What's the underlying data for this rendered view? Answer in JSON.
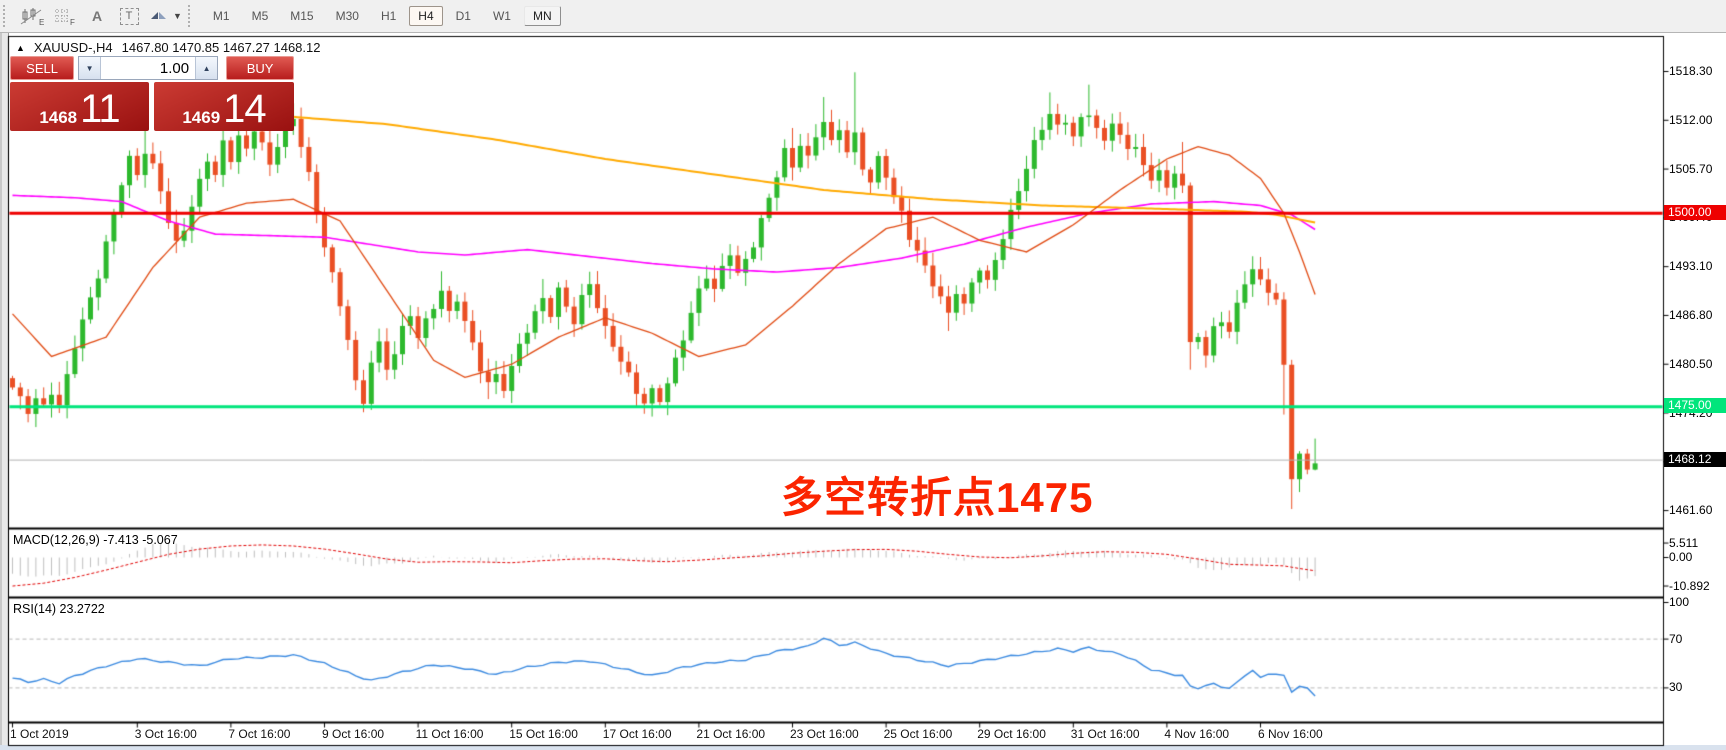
{
  "toolbar": {
    "tools": [
      "indicators-icon",
      "grid-icon",
      "text-label-icon",
      "text-box-icon",
      "cycle-arrows-icon"
    ],
    "text_label_glyph": "A",
    "text_box_glyph": "T",
    "timeframes": [
      "M1",
      "M5",
      "M15",
      "M30",
      "H1",
      "H4",
      "D1",
      "W1",
      "MN"
    ],
    "active_timeframe": "H4",
    "raised_timeframe": "MN"
  },
  "header": {
    "symbol": "XAUUSD-,H4",
    "quotes": "1467.80 1470.85 1467.27 1468.12",
    "open": "1467.80",
    "high": "1470.85",
    "low": "1467.27",
    "close": "1468.12"
  },
  "trade_panel": {
    "sell_label": "SELL",
    "buy_label": "BUY",
    "volume": "1.00",
    "bid_main": "1468",
    "bid_pts": "11",
    "ask_main": "1469",
    "ask_pts": "14"
  },
  "annotation": {
    "text": "多空转折点1475",
    "color": "#fb2400"
  },
  "levels": {
    "resistance": {
      "price": 1500.0,
      "label": "1500.00",
      "color": "#ee0000"
    },
    "support": {
      "price": 1475.0,
      "label": "1475.00",
      "color": "#00e57c"
    },
    "current": {
      "price": 1468.12,
      "label": "1468.12",
      "color": "#000000"
    }
  },
  "macd_panel": {
    "label": "MACD(12,26,9) -7.413 -5.067",
    "axis": [
      "5.511",
      "0.00",
      "-10.892"
    ]
  },
  "rsi_panel": {
    "label": "RSI(14) 23.2722",
    "axis": [
      "100",
      "70",
      "30"
    ],
    "levels": [
      70,
      30
    ]
  },
  "chart_data": {
    "type": "candlestick",
    "symbol": "XAUUSD",
    "timeframe": "H4",
    "ylim": [
      1458.5,
      1521.5
    ],
    "price_ticks": [
      "1518.30",
      "1512.00",
      "1505.70",
      "1499.40",
      "1493.10",
      "1486.80",
      "1480.50",
      "1474.20",
      "1467.90",
      "1461.60"
    ],
    "time_labels": [
      "1 Oct 2019",
      "3 Oct 16:00",
      "7 Oct 16:00",
      "9 Oct 16:00",
      "11 Oct 16:00",
      "15 Oct 16:00",
      "17 Oct 16:00",
      "21 Oct 16:00",
      "23 Oct 16:00",
      "25 Oct 16:00",
      "29 Oct 16:00",
      "31 Oct 16:00",
      "4 Nov 16:00",
      "6 Nov 16:00"
    ],
    "time_tick_bars": [
      0,
      16,
      28,
      40,
      52,
      64,
      76,
      88,
      100,
      112,
      124,
      136,
      148,
      160
    ],
    "up_color": "#2db92d",
    "down_color": "#ea4f24",
    "closes": [
      1477.5,
      1476,
      1474.5,
      1476,
      1475,
      1477,
      1475,
      1479,
      1483,
      1486,
      1489,
      1492,
      1496,
      1500,
      1504,
      1507,
      1505,
      1508,
      1506,
      1503,
      1499,
      1496,
      1498,
      1501,
      1504,
      1507,
      1505,
      1509,
      1507,
      1510,
      1508,
      1511,
      1509,
      1506,
      1509,
      1511,
      1512,
      1509,
      1505,
      1500,
      1496,
      1492,
      1488,
      1484,
      1478,
      1475.5,
      1481,
      1483,
      1480,
      1482,
      1485,
      1487,
      1484,
      1486,
      1488,
      1490,
      1487,
      1489,
      1486,
      1483,
      1480,
      1478,
      1479,
      1477.5,
      1480,
      1483,
      1485,
      1487,
      1489,
      1487,
      1490,
      1488,
      1486,
      1489,
      1491,
      1488,
      1485,
      1483,
      1481,
      1479,
      1477,
      1475.5,
      1477,
      1476,
      1478,
      1481,
      1484,
      1487,
      1490,
      1492,
      1490,
      1493,
      1495,
      1492,
      1494,
      1496,
      1499,
      1502,
      1505,
      1508,
      1506,
      1509,
      1507,
      1510,
      1512,
      1509,
      1511,
      1508,
      1510,
      1506,
      1504,
      1507,
      1505,
      1502,
      1500,
      1497,
      1495,
      1493,
      1491,
      1489,
      1487,
      1490,
      1488,
      1491,
      1493,
      1491,
      1494,
      1497,
      1500,
      1503,
      1506,
      1509,
      1511,
      1513,
      1511,
      1512,
      1510,
      1512,
      1513,
      1511,
      1509,
      1512,
      1510,
      1508,
      1509,
      1506,
      1504,
      1506,
      1503,
      1505,
      1504,
      1483,
      1484,
      1482,
      1485,
      1486,
      1485,
      1488,
      1491,
      1493,
      1491,
      1490,
      1489,
      1480,
      1466,
      1469,
      1466.5,
      1468.1
    ],
    "wicks": {
      "2": [
        null,
        1473
      ],
      "6": [
        null,
        1474.2
      ],
      "17": [
        1512,
        null
      ],
      "27": [
        1512.5,
        null
      ],
      "31": [
        1513.5,
        null
      ],
      "36": [
        1514.2,
        null
      ],
      "45": [
        null,
        1474.3
      ],
      "46": [
        null,
        1474.6
      ],
      "55": [
        1492.5,
        null
      ],
      "61": [
        null,
        1476
      ],
      "68": [
        1491.5,
        null
      ],
      "81": [
        null,
        1474.1
      ],
      "100": [
        1511,
        null
      ],
      "104": [
        1515,
        null
      ],
      "108": [
        1518.2,
        null
      ],
      "120": [
        null,
        1484.8
      ],
      "133": [
        1515.6,
        null
      ],
      "138": [
        1516.6,
        null
      ],
      "150": [
        1509.2,
        null
      ],
      "151": [
        null,
        1479.8
      ],
      "163": [
        null,
        1474
      ],
      "164": [
        null,
        1461.8
      ],
      "167": [
        1470.9,
        1466.8
      ]
    },
    "ma_slow_orange": [
      [
        34,
        1512.6
      ],
      [
        48,
        1511.5
      ],
      [
        62,
        1509.5
      ],
      [
        76,
        1507
      ],
      [
        90,
        1505
      ],
      [
        104,
        1503
      ],
      [
        118,
        1501.8
      ],
      [
        132,
        1501
      ],
      [
        146,
        1500.6
      ],
      [
        152,
        1500.4
      ],
      [
        158,
        1500.2
      ],
      [
        162,
        1499.8
      ],
      [
        167,
        1498.8
      ]
    ],
    "ma_mid_magenta": [
      [
        0,
        1502.3
      ],
      [
        8,
        1502
      ],
      [
        14,
        1501.5
      ],
      [
        20,
        1499
      ],
      [
        26,
        1497.3
      ],
      [
        40,
        1496.9
      ],
      [
        52,
        1495
      ],
      [
        58,
        1494.6
      ],
      [
        66,
        1495.3
      ],
      [
        74,
        1494.4
      ],
      [
        82,
        1493.5
      ],
      [
        90,
        1492.8
      ],
      [
        98,
        1492.4
      ],
      [
        106,
        1493
      ],
      [
        114,
        1494.2
      ],
      [
        122,
        1496
      ],
      [
        130,
        1498.2
      ],
      [
        138,
        1500
      ],
      [
        146,
        1501.2
      ],
      [
        154,
        1501.5
      ],
      [
        160,
        1501
      ],
      [
        164,
        1499.8
      ],
      [
        167,
        1497.9
      ]
    ],
    "ma_fast_red": [
      [
        0,
        1487
      ],
      [
        5,
        1481.5
      ],
      [
        12,
        1484
      ],
      [
        18,
        1493
      ],
      [
        24,
        1499.5
      ],
      [
        30,
        1501.3
      ],
      [
        36,
        1501.8
      ],
      [
        42,
        1499
      ],
      [
        48,
        1490
      ],
      [
        54,
        1481
      ],
      [
        58,
        1478.8
      ],
      [
        64,
        1480.5
      ],
      [
        70,
        1484
      ],
      [
        76,
        1486.5
      ],
      [
        82,
        1484.5
      ],
      [
        88,
        1481.5
      ],
      [
        94,
        1483
      ],
      [
        100,
        1488
      ],
      [
        106,
        1493.5
      ],
      [
        112,
        1498
      ],
      [
        118,
        1499.5
      ],
      [
        124,
        1496.5
      ],
      [
        130,
        1495
      ],
      [
        136,
        1498.5
      ],
      [
        142,
        1503
      ],
      [
        148,
        1507
      ],
      [
        152,
        1508.6
      ],
      [
        156,
        1507.5
      ],
      [
        160,
        1504.5
      ],
      [
        163,
        1500
      ],
      [
        165,
        1495
      ],
      [
        167,
        1489.5
      ]
    ],
    "macd_hist": [
      [
        0,
        -6.2
      ],
      [
        3,
        -7.4
      ],
      [
        6,
        -6.8
      ],
      [
        10,
        -4
      ],
      [
        14,
        -0.5
      ],
      [
        18,
        5.5
      ],
      [
        22,
        4.8
      ],
      [
        26,
        3.2
      ],
      [
        30,
        2.2
      ],
      [
        34,
        2.6
      ],
      [
        38,
        1.2
      ],
      [
        42,
        -1.5
      ],
      [
        46,
        -3.2
      ],
      [
        50,
        -2
      ],
      [
        54,
        0.5
      ],
      [
        58,
        -0.6
      ],
      [
        62,
        -1.8
      ],
      [
        66,
        0.4
      ],
      [
        70,
        1
      ],
      [
        74,
        0.6
      ],
      [
        78,
        -0.8
      ],
      [
        82,
        -1.9
      ],
      [
        86,
        -0.6
      ],
      [
        90,
        0.6
      ],
      [
        94,
        1
      ],
      [
        98,
        2
      ],
      [
        102,
        2.6
      ],
      [
        106,
        3
      ],
      [
        110,
        3.2
      ],
      [
        114,
        1.6
      ],
      [
        118,
        0.2
      ],
      [
        122,
        -1
      ],
      [
        126,
        -0.4
      ],
      [
        130,
        1
      ],
      [
        134,
        2.2
      ],
      [
        138,
        2.6
      ],
      [
        142,
        1.8
      ],
      [
        146,
        0.6
      ],
      [
        150,
        -0.8
      ],
      [
        152,
        -4.2
      ],
      [
        155,
        -4.6
      ],
      [
        158,
        -3
      ],
      [
        161,
        -2.2
      ],
      [
        163,
        -3
      ],
      [
        165,
        -8.5
      ],
      [
        167,
        -7.4
      ]
    ],
    "macd_signal": [
      [
        0,
        -10.89
      ],
      [
        4,
        -9.8
      ],
      [
        8,
        -7.6
      ],
      [
        12,
        -4.8
      ],
      [
        16,
        -1.8
      ],
      [
        20,
        1.2
      ],
      [
        24,
        3.2
      ],
      [
        28,
        4.4
      ],
      [
        32,
        4.8
      ],
      [
        36,
        4.4
      ],
      [
        40,
        3.2
      ],
      [
        44,
        1.4
      ],
      [
        48,
        -0.6
      ],
      [
        52,
        -1.8
      ],
      [
        56,
        -1.6
      ],
      [
        60,
        -1.7
      ],
      [
        64,
        -2
      ],
      [
        68,
        -1.2
      ],
      [
        72,
        -0.6
      ],
      [
        76,
        -0.5
      ],
      [
        80,
        -1.2
      ],
      [
        84,
        -1.6
      ],
      [
        88,
        -1
      ],
      [
        92,
        -0.2
      ],
      [
        96,
        0.6
      ],
      [
        100,
        1.6
      ],
      [
        104,
        2.4
      ],
      [
        108,
        3
      ],
      [
        112,
        3.1
      ],
      [
        116,
        2.4
      ],
      [
        120,
        1.2
      ],
      [
        124,
        0.2
      ],
      [
        128,
        -0.1
      ],
      [
        132,
        0.6
      ],
      [
        136,
        1.6
      ],
      [
        140,
        2.2
      ],
      [
        144,
        2
      ],
      [
        148,
        1.2
      ],
      [
        152,
        -0.6
      ],
      [
        156,
        -2.6
      ],
      [
        160,
        -2.9
      ],
      [
        163,
        -3.2
      ],
      [
        165,
        -4.2
      ],
      [
        167,
        -5.07
      ]
    ],
    "rsi": [
      [
        0,
        38
      ],
      [
        2,
        35
      ],
      [
        4,
        37
      ],
      [
        6,
        34
      ],
      [
        8,
        40
      ],
      [
        12,
        48
      ],
      [
        16,
        54
      ],
      [
        20,
        51
      ],
      [
        24,
        48
      ],
      [
        28,
        54
      ],
      [
        32,
        55
      ],
      [
        36,
        57
      ],
      [
        40,
        50
      ],
      [
        44,
        40
      ],
      [
        46,
        36
      ],
      [
        50,
        43
      ],
      [
        54,
        49
      ],
      [
        58,
        46
      ],
      [
        62,
        41
      ],
      [
        66,
        47
      ],
      [
        70,
        51
      ],
      [
        74,
        52
      ],
      [
        78,
        46
      ],
      [
        82,
        40
      ],
      [
        86,
        47
      ],
      [
        90,
        51
      ],
      [
        94,
        53
      ],
      [
        98,
        60
      ],
      [
        102,
        64
      ],
      [
        104,
        71
      ],
      [
        106,
        65
      ],
      [
        108,
        67
      ],
      [
        112,
        58
      ],
      [
        116,
        53
      ],
      [
        120,
        48
      ],
      [
        124,
        52
      ],
      [
        128,
        56
      ],
      [
        132,
        60
      ],
      [
        134,
        62
      ],
      [
        136,
        60
      ],
      [
        138,
        63
      ],
      [
        140,
        60
      ],
      [
        142,
        58
      ],
      [
        144,
        52
      ],
      [
        146,
        45
      ],
      [
        148,
        42
      ],
      [
        150,
        40
      ],
      [
        151,
        31
      ],
      [
        152,
        30
      ],
      [
        153,
        32
      ],
      [
        154,
        33
      ],
      [
        155,
        31
      ],
      [
        156,
        30
      ],
      [
        157,
        34
      ],
      [
        158,
        40
      ],
      [
        159,
        45
      ],
      [
        160,
        38
      ],
      [
        161,
        41
      ],
      [
        162,
        42
      ],
      [
        163,
        40
      ],
      [
        164,
        26
      ],
      [
        165,
        32
      ],
      [
        166,
        30
      ],
      [
        167,
        23.3
      ]
    ]
  }
}
